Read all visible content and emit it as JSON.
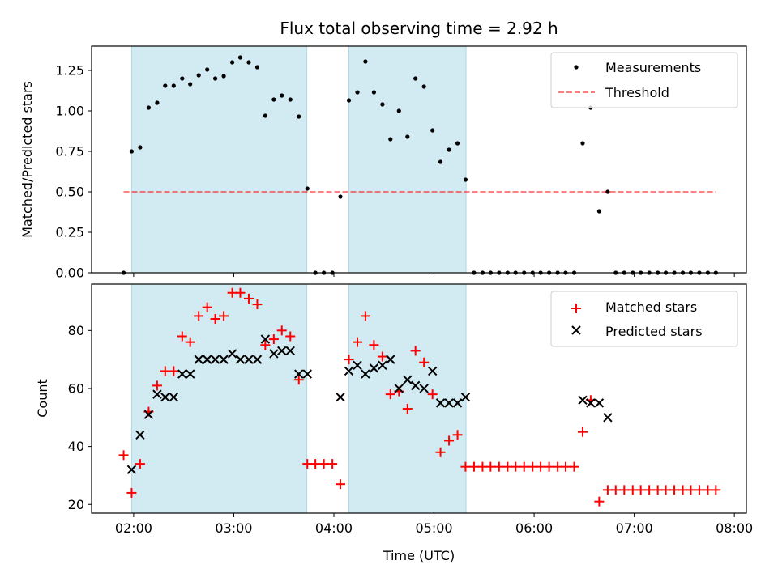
{
  "colors": {
    "band": "#add8e6",
    "threshold": "#ff0000",
    "matched": "#ff0000",
    "predicted": "#000000",
    "measure": "#000000"
  },
  "chart_data": [
    {
      "type": "scatter",
      "title": "Flux total observing time = 2.92 h",
      "xlabel": "",
      "ylabel": "Matched/Predicted stars",
      "xlim": [
        1.58,
        8.12
      ],
      "ylim": [
        0,
        1.4
      ],
      "yticks": [
        0,
        0.25,
        0.5,
        0.75,
        1.0,
        1.25
      ],
      "ytick_labels": [
        "0.00",
        "0.25",
        "0.50",
        "0.75",
        "1.00",
        "1.25"
      ],
      "grid": false,
      "legend_position": "top-right",
      "shaded_intervals": [
        [
          1.98,
          3.73
        ],
        [
          4.15,
          5.32
        ]
      ],
      "series": [
        {
          "name": "Measurements",
          "kind": "points",
          "x": [
            1.9,
            1.98,
            2.065,
            2.15,
            2.235,
            2.315,
            2.4,
            2.485,
            2.565,
            2.65,
            2.735,
            2.815,
            2.9,
            2.985,
            3.065,
            3.15,
            3.235,
            3.315,
            3.4,
            3.48,
            3.565,
            3.65,
            3.735,
            3.815,
            3.9,
            3.985,
            4.065,
            4.15,
            4.235,
            4.315,
            4.4,
            4.485,
            4.565,
            4.65,
            4.735,
            4.815,
            4.9,
            4.985,
            5.065,
            5.15,
            5.235,
            5.315,
            5.4,
            5.485,
            5.565,
            5.65,
            5.735,
            5.815,
            5.9,
            5.985,
            6.065,
            6.15,
            6.235,
            6.315,
            6.4,
            6.485,
            6.565,
            6.65,
            6.735,
            6.815,
            6.9,
            6.985,
            7.065,
            7.15,
            7.235,
            7.315,
            7.4,
            7.485,
            7.565,
            7.65,
            7.735,
            7.815
          ],
          "y": [
            0,
            0.75,
            0.775,
            1.02,
            1.05,
            1.155,
            1.155,
            1.2,
            1.165,
            1.22,
            1.255,
            1.2,
            1.215,
            1.3,
            1.33,
            1.3,
            1.27,
            0.97,
            1.07,
            1.095,
            1.07,
            0.965,
            0.52,
            0,
            0,
            0,
            0.47,
            1.065,
            1.115,
            1.305,
            1.115,
            1.04,
            0.825,
            1.0,
            0.84,
            1.2,
            1.15,
            0.88,
            0.685,
            0.76,
            0.8,
            0.575,
            0,
            0,
            0,
            0,
            0,
            0,
            0,
            0,
            0,
            0,
            0,
            0,
            0,
            0.8,
            1.02,
            0.38,
            0.5,
            0,
            0,
            0,
            0,
            0,
            0,
            0,
            0,
            0,
            0,
            0,
            0,
            0
          ]
        },
        {
          "name": "Threshold",
          "kind": "line",
          "x": [
            1.9,
            7.82
          ],
          "y": [
            0.5,
            0.5
          ]
        }
      ]
    },
    {
      "type": "scatter",
      "title": "",
      "xlabel": "Time (UTC)",
      "ylabel": "Count",
      "xlim": [
        1.58,
        8.12
      ],
      "ylim": [
        17,
        96
      ],
      "xticks": [
        2,
        3,
        4,
        5,
        6,
        7,
        8
      ],
      "xtick_labels": [
        "02:00",
        "03:00",
        "04:00",
        "05:00",
        "06:00",
        "07:00",
        "08:00"
      ],
      "yticks": [
        20,
        40,
        60,
        80
      ],
      "ytick_labels": [
        "20",
        "40",
        "60",
        "80"
      ],
      "grid": false,
      "legend_position": "top-right",
      "shaded_intervals": [
        [
          1.98,
          3.73
        ],
        [
          4.15,
          5.32
        ]
      ],
      "series": [
        {
          "name": "Matched stars",
          "kind": "plus",
          "x": [
            1.9,
            1.98,
            2.065,
            2.15,
            2.235,
            2.315,
            2.4,
            2.485,
            2.565,
            2.65,
            2.735,
            2.815,
            2.9,
            2.985,
            3.065,
            3.15,
            3.235,
            3.315,
            3.4,
            3.48,
            3.565,
            3.65,
            3.735,
            3.815,
            3.9,
            3.985,
            4.065,
            4.15,
            4.235,
            4.315,
            4.4,
            4.485,
            4.565,
            4.65,
            4.735,
            4.815,
            4.9,
            4.985,
            5.065,
            5.15,
            5.235,
            5.315,
            5.4,
            5.485,
            5.565,
            5.65,
            5.735,
            5.815,
            5.9,
            5.985,
            6.065,
            6.15,
            6.235,
            6.315,
            6.4,
            6.485,
            6.565,
            6.65,
            6.735,
            6.815,
            6.9,
            6.985,
            7.065,
            7.15,
            7.235,
            7.315,
            7.4,
            7.485,
            7.565,
            7.65,
            7.735,
            7.815
          ],
          "y": [
            37,
            24,
            34,
            52,
            61,
            66,
            66,
            78,
            76,
            85,
            88,
            84,
            85,
            93,
            93,
            91,
            89,
            75,
            77,
            80,
            78,
            63,
            34,
            34,
            34,
            34,
            27,
            70,
            76,
            85,
            75,
            71,
            58,
            59,
            53,
            73,
            69,
            58,
            38,
            42,
            44,
            33,
            33,
            33,
            33,
            33,
            33,
            33,
            33,
            33,
            33,
            33,
            33,
            33,
            33,
            45,
            56,
            21,
            25,
            25,
            25,
            25,
            25,
            25,
            25,
            25,
            25,
            25,
            25,
            25,
            25,
            25
          ]
        },
        {
          "name": "Predicted stars",
          "kind": "x",
          "x": [
            1.98,
            2.065,
            2.15,
            2.235,
            2.315,
            2.4,
            2.485,
            2.565,
            2.65,
            2.735,
            2.815,
            2.9,
            2.985,
            3.065,
            3.15,
            3.235,
            3.315,
            3.4,
            3.48,
            3.565,
            3.65,
            3.735,
            4.065,
            4.15,
            4.235,
            4.315,
            4.4,
            4.485,
            4.565,
            4.65,
            4.735,
            4.815,
            4.9,
            4.985,
            5.065,
            5.15,
            5.235,
            5.315,
            6.485,
            6.565,
            6.65,
            6.735
          ],
          "y": [
            32,
            44,
            51,
            58,
            57,
            57,
            65,
            65,
            70,
            70,
            70,
            70,
            72,
            70,
            70,
            70,
            77,
            72,
            73,
            73,
            65,
            65,
            57,
            66,
            68,
            65,
            67,
            68,
            70,
            60,
            63,
            61,
            60,
            66,
            55,
            55,
            55,
            57,
            56,
            55,
            55,
            50
          ]
        }
      ]
    }
  ]
}
